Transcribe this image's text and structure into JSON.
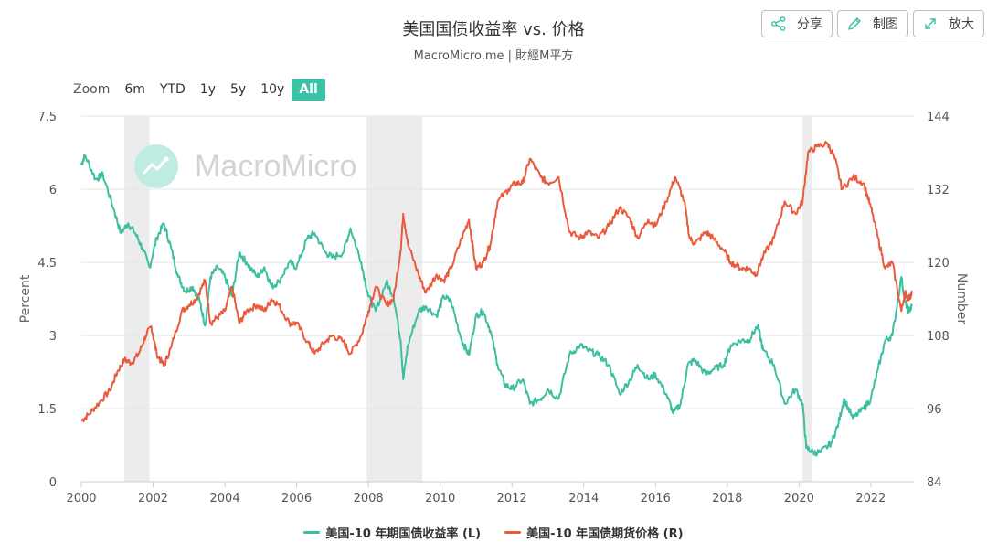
{
  "header": {
    "title": "美国国债收益率 vs. 价格",
    "subtitle": "MacroMicro.me | 財經M平方"
  },
  "toolbar": {
    "share_label": "分享",
    "chart_label": "制图",
    "expand_label": "放大"
  },
  "zoom": {
    "label": "Zoom",
    "options": [
      "6m",
      "YTD",
      "1y",
      "5y",
      "10y",
      "All"
    ],
    "selected": "All"
  },
  "watermark": {
    "text": "MacroMicro"
  },
  "colors": {
    "yield": "#3cbfa1",
    "price": "#ea5a3c",
    "recession": "#ececec",
    "grid": "#e6e6e6",
    "active": "#3cc3a6"
  },
  "chart_data": {
    "type": "line",
    "xlabel": "",
    "ylabel_left": "Percent",
    "ylabel_right": "Number",
    "x_ticks": [
      "2000",
      "2002",
      "2004",
      "2006",
      "2008",
      "2010",
      "2012",
      "2014",
      "2016",
      "2018",
      "2020",
      "2022"
    ],
    "y_left_ticks": [
      "0",
      "1.5",
      "3",
      "4.5",
      "6",
      "7.5"
    ],
    "y_right_ticks": [
      "84",
      "96",
      "108",
      "120",
      "132",
      "144"
    ],
    "ylim_left": [
      0,
      7.5
    ],
    "ylim_right": [
      84,
      144
    ],
    "xlim": [
      2000,
      2023.2
    ],
    "recessions": [
      [
        2001.2,
        2001.9
      ],
      [
        2007.95,
        2009.5
      ],
      [
        2020.1,
        2020.35
      ]
    ],
    "series": [
      {
        "name": "美国-10 年期国债收益率 (L)",
        "axis": "left",
        "points": [
          [
            2000.0,
            6.5
          ],
          [
            2000.1,
            6.7
          ],
          [
            2000.4,
            6.2
          ],
          [
            2000.6,
            6.3
          ],
          [
            2000.9,
            5.6
          ],
          [
            2001.1,
            5.1
          ],
          [
            2001.3,
            5.3
          ],
          [
            2001.5,
            5.1
          ],
          [
            2001.7,
            4.8
          ],
          [
            2001.9,
            4.4
          ],
          [
            2002.1,
            5.0
          ],
          [
            2002.3,
            5.3
          ],
          [
            2002.5,
            4.8
          ],
          [
            2002.7,
            4.2
          ],
          [
            2002.9,
            3.9
          ],
          [
            2003.1,
            4.0
          ],
          [
            2003.3,
            3.7
          ],
          [
            2003.45,
            3.2
          ],
          [
            2003.6,
            4.2
          ],
          [
            2003.8,
            4.4
          ],
          [
            2004.0,
            4.2
          ],
          [
            2004.2,
            3.8
          ],
          [
            2004.4,
            4.7
          ],
          [
            2004.6,
            4.5
          ],
          [
            2004.9,
            4.2
          ],
          [
            2005.1,
            4.4
          ],
          [
            2005.3,
            4.0
          ],
          [
            2005.5,
            4.1
          ],
          [
            2005.8,
            4.5
          ],
          [
            2006.0,
            4.4
          ],
          [
            2006.3,
            5.0
          ],
          [
            2006.5,
            5.1
          ],
          [
            2006.8,
            4.7
          ],
          [
            2007.0,
            4.6
          ],
          [
            2007.3,
            4.7
          ],
          [
            2007.5,
            5.2
          ],
          [
            2007.8,
            4.5
          ],
          [
            2008.0,
            3.8
          ],
          [
            2008.2,
            3.5
          ],
          [
            2008.5,
            4.1
          ],
          [
            2008.7,
            3.8
          ],
          [
            2008.9,
            2.9
          ],
          [
            2008.97,
            2.1
          ],
          [
            2009.1,
            2.8
          ],
          [
            2009.4,
            3.5
          ],
          [
            2009.6,
            3.6
          ],
          [
            2009.9,
            3.4
          ],
          [
            2010.1,
            3.8
          ],
          [
            2010.3,
            3.7
          ],
          [
            2010.6,
            2.9
          ],
          [
            2010.8,
            2.6
          ],
          [
            2011.0,
            3.4
          ],
          [
            2011.2,
            3.5
          ],
          [
            2011.4,
            3.1
          ],
          [
            2011.6,
            2.4
          ],
          [
            2011.8,
            2.0
          ],
          [
            2012.0,
            1.9
          ],
          [
            2012.3,
            2.1
          ],
          [
            2012.5,
            1.6
          ],
          [
            2012.8,
            1.7
          ],
          [
            2013.0,
            1.9
          ],
          [
            2013.3,
            1.7
          ],
          [
            2013.6,
            2.6
          ],
          [
            2013.9,
            2.8
          ],
          [
            2014.1,
            2.7
          ],
          [
            2014.4,
            2.6
          ],
          [
            2014.7,
            2.4
          ],
          [
            2015.0,
            1.8
          ],
          [
            2015.3,
            2.1
          ],
          [
            2015.5,
            2.4
          ],
          [
            2015.8,
            2.1
          ],
          [
            2016.0,
            2.2
          ],
          [
            2016.3,
            1.8
          ],
          [
            2016.5,
            1.4
          ],
          [
            2016.7,
            1.6
          ],
          [
            2016.9,
            2.4
          ],
          [
            2017.1,
            2.5
          ],
          [
            2017.4,
            2.2
          ],
          [
            2017.6,
            2.3
          ],
          [
            2017.9,
            2.4
          ],
          [
            2018.1,
            2.8
          ],
          [
            2018.4,
            2.9
          ],
          [
            2018.6,
            2.9
          ],
          [
            2018.85,
            3.2
          ],
          [
            2019.0,
            2.7
          ],
          [
            2019.3,
            2.4
          ],
          [
            2019.6,
            1.6
          ],
          [
            2019.9,
            1.9
          ],
          [
            2020.1,
            1.6
          ],
          [
            2020.2,
            0.7
          ],
          [
            2020.4,
            0.6
          ],
          [
            2020.6,
            0.6
          ],
          [
            2020.9,
            0.8
          ],
          [
            2021.1,
            1.2
          ],
          [
            2021.25,
            1.7
          ],
          [
            2021.5,
            1.3
          ],
          [
            2021.8,
            1.5
          ],
          [
            2022.0,
            1.7
          ],
          [
            2022.2,
            2.3
          ],
          [
            2022.4,
            2.9
          ],
          [
            2022.6,
            3.0
          ],
          [
            2022.85,
            4.2
          ],
          [
            2022.95,
            3.7
          ],
          [
            2023.05,
            3.5
          ],
          [
            2023.15,
            3.6
          ]
        ]
      },
      {
        "name": "美国-10 年国债期货价格 (R)",
        "axis": "right",
        "points": [
          [
            2000.0,
            94.0
          ],
          [
            2000.2,
            95.0
          ],
          [
            2000.5,
            97.0
          ],
          [
            2000.8,
            99.0
          ],
          [
            2001.0,
            102.0
          ],
          [
            2001.2,
            104.0
          ],
          [
            2001.4,
            103.5
          ],
          [
            2001.6,
            105.0
          ],
          [
            2001.8,
            108.0
          ],
          [
            2001.95,
            109.5
          ],
          [
            2002.1,
            105.0
          ],
          [
            2002.3,
            103.0
          ],
          [
            2002.5,
            106.0
          ],
          [
            2002.8,
            112.0
          ],
          [
            2003.0,
            113.0
          ],
          [
            2003.2,
            114.0
          ],
          [
            2003.45,
            117.0
          ],
          [
            2003.6,
            110.0
          ],
          [
            2003.8,
            111.0
          ],
          [
            2004.0,
            112.0
          ],
          [
            2004.2,
            116.0
          ],
          [
            2004.4,
            110.0
          ],
          [
            2004.6,
            112.0
          ],
          [
            2004.9,
            113.0
          ],
          [
            2005.1,
            112.0
          ],
          [
            2005.3,
            114.0
          ],
          [
            2005.5,
            113.0
          ],
          [
            2005.8,
            110.0
          ],
          [
            2006.0,
            110.0
          ],
          [
            2006.3,
            107.0
          ],
          [
            2006.5,
            105.0
          ],
          [
            2006.8,
            107.0
          ],
          [
            2007.0,
            108.0
          ],
          [
            2007.3,
            107.0
          ],
          [
            2007.5,
            105.0
          ],
          [
            2007.8,
            108.0
          ],
          [
            2008.0,
            112.0
          ],
          [
            2008.2,
            116.0
          ],
          [
            2008.5,
            113.0
          ],
          [
            2008.7,
            114.0
          ],
          [
            2008.9,
            122.0
          ],
          [
            2008.97,
            128.0
          ],
          [
            2009.1,
            123.0
          ],
          [
            2009.4,
            118.0
          ],
          [
            2009.6,
            115.0
          ],
          [
            2009.9,
            118.0
          ],
          [
            2010.1,
            117.0
          ],
          [
            2010.3,
            119.0
          ],
          [
            2010.6,
            124.0
          ],
          [
            2010.8,
            127.0
          ],
          [
            2011.0,
            119.0
          ],
          [
            2011.2,
            120.0
          ],
          [
            2011.4,
            123.0
          ],
          [
            2011.6,
            130.0
          ],
          [
            2011.9,
            132.0
          ],
          [
            2012.1,
            133.0
          ],
          [
            2012.3,
            133.0
          ],
          [
            2012.5,
            137.0
          ],
          [
            2012.8,
            134.0
          ],
          [
            2013.0,
            133.0
          ],
          [
            2013.3,
            134.0
          ],
          [
            2013.6,
            125.0
          ],
          [
            2013.9,
            124.0
          ],
          [
            2014.1,
            125.0
          ],
          [
            2014.4,
            124.0
          ],
          [
            2014.7,
            126.0
          ],
          [
            2015.0,
            129.0
          ],
          [
            2015.3,
            127.0
          ],
          [
            2015.5,
            124.0
          ],
          [
            2015.8,
            127.0
          ],
          [
            2016.0,
            126.0
          ],
          [
            2016.3,
            130.0
          ],
          [
            2016.55,
            134.0
          ],
          [
            2016.8,
            130.0
          ],
          [
            2016.95,
            124.0
          ],
          [
            2017.1,
            123.0
          ],
          [
            2017.4,
            125.0
          ],
          [
            2017.6,
            124.0
          ],
          [
            2017.9,
            122.0
          ],
          [
            2018.1,
            120.0
          ],
          [
            2018.4,
            119.0
          ],
          [
            2018.6,
            119.0
          ],
          [
            2018.8,
            118.0
          ],
          [
            2019.0,
            121.0
          ],
          [
            2019.3,
            124.0
          ],
          [
            2019.6,
            130.0
          ],
          [
            2019.9,
            128.0
          ],
          [
            2020.1,
            130.0
          ],
          [
            2020.25,
            138.0
          ],
          [
            2020.5,
            139.0
          ],
          [
            2020.8,
            139.5
          ],
          [
            2021.0,
            137.0
          ],
          [
            2021.2,
            132.0
          ],
          [
            2021.5,
            134.0
          ],
          [
            2021.8,
            133.0
          ],
          [
            2022.0,
            129.0
          ],
          [
            2022.2,
            124.0
          ],
          [
            2022.4,
            119.0
          ],
          [
            2022.6,
            120.0
          ],
          [
            2022.85,
            112.0
          ],
          [
            2022.95,
            115.0
          ],
          [
            2023.05,
            114.0
          ],
          [
            2023.15,
            115.0
          ]
        ]
      }
    ],
    "legend_position": "bottom-center",
    "grid": true
  }
}
